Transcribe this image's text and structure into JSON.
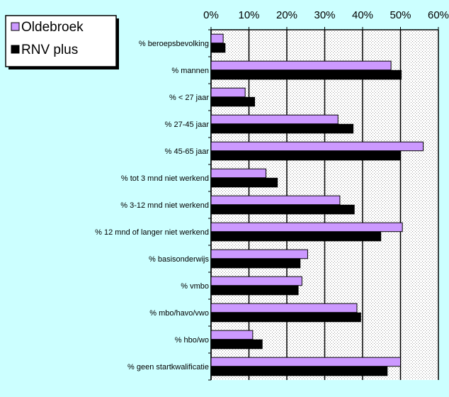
{
  "chart_data": {
    "type": "bar",
    "orientation": "horizontal",
    "xaxis_position": "top",
    "xlim": [
      0,
      60
    ],
    "xticks": [
      0,
      10,
      20,
      30,
      40,
      50,
      60
    ],
    "tick_suffix": "%",
    "grid": true,
    "legend_position": "top-left",
    "categories": [
      "% beroepsbevolking",
      "% mannen",
      "% < 27 jaar",
      "% 27-45 jaar",
      "% 45-65 jaar",
      "% tot 3 mnd niet werkend",
      "% 3-12 mnd niet werkend",
      "% 12 mnd of langer niet werkend",
      "% basisonderwijs",
      "% vmbo",
      "% mbo/havo/vwo",
      "% hbo/wo",
      "% geen startkwalificatie"
    ],
    "series": [
      {
        "name": "Oldebroek",
        "color": "#cc99ff",
        "values": [
          3.2,
          47.5,
          9,
          33.5,
          56,
          14.5,
          34,
          50.5,
          25.5,
          24,
          38.5,
          11,
          50
        ]
      },
      {
        "name": "RNV plus",
        "color": "#000000",
        "values": [
          3.7,
          50.2,
          11.5,
          37.5,
          50,
          17.5,
          37.8,
          44.8,
          23.5,
          23,
          39.5,
          13.5,
          46.5
        ]
      }
    ],
    "colors": {
      "background": "#ccffff",
      "plot_area": "#ffffff",
      "plot_dots": "#9a9a9a"
    }
  }
}
